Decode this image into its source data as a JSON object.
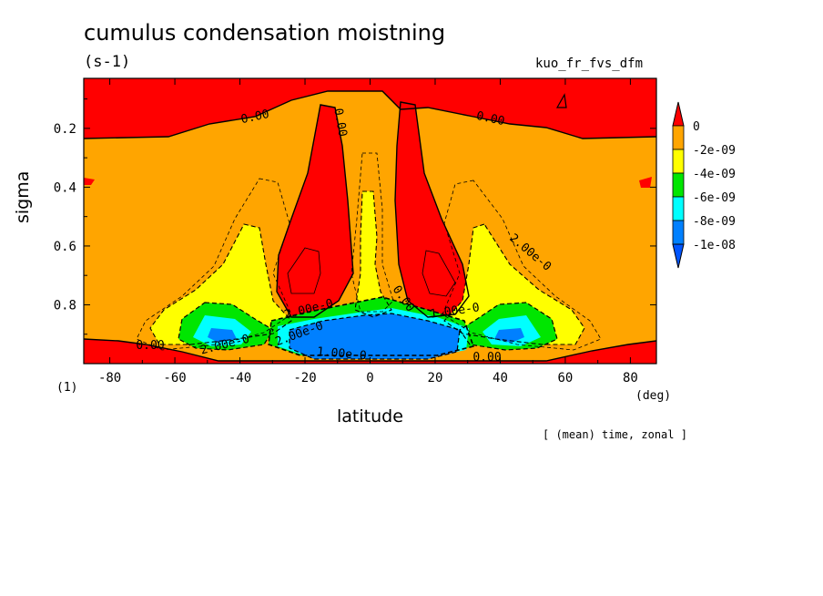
{
  "chart_data": {
    "type": "heatmap",
    "title": "cumulus condensation moistning",
    "units": "(s-1)",
    "variable": "kuo_fr_fvs_dfm",
    "xlabel": "latitude",
    "xunit": "(deg)",
    "ylabel": "sigma",
    "note": "[ (mean) time, zonal ]",
    "panel_number": "(1)",
    "xlim": [
      -88,
      88
    ],
    "ylim": [
      1.0,
      0.03
    ],
    "xticks": [
      -80,
      -60,
      -40,
      -20,
      0,
      20,
      40,
      60,
      80
    ],
    "yticks": [
      0.2,
      0.4,
      0.6,
      0.8
    ],
    "colorbar": {
      "labels": [
        "0",
        "-2e-09",
        "-4e-09",
        "-6e-09",
        "-8e-09",
        "-1e-08"
      ],
      "colors": [
        "#ff0000",
        "#ffa500",
        "#ffff00",
        "#00e600",
        "#00ffff",
        "#0080ff",
        "#0055ff"
      ]
    },
    "contour_labels": [
      "0.00",
      "0.00",
      "0.00",
      "2.00e-0",
      "2.00e-0",
      "2.00e-0",
      "2.00e-0",
      "0.00",
      "1.00e-0",
      "1.00e-0",
      "0.00",
      "0.00"
    ]
  }
}
